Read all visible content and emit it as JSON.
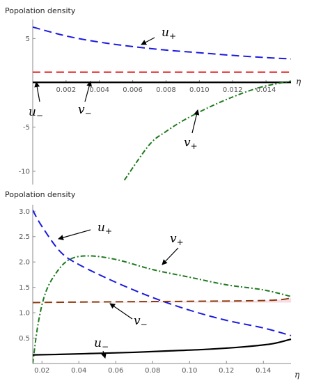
{
  "chart_data": [
    {
      "type": "line",
      "ylabel": "Popolation density",
      "xlabel": "η",
      "xlim": [
        0.0,
        0.0155
      ],
      "ylim": [
        -11.5,
        7.0
      ],
      "xticks": [
        0.002,
        0.004,
        0.006,
        0.008,
        0.01,
        0.012,
        0.014
      ],
      "xtick_labels": [
        "0.002",
        "0.004",
        "0.006",
        "0.008",
        "0.010",
        "0.012",
        "0.014"
      ],
      "yticks": [
        5,
        -5,
        -10
      ],
      "ytick_labels": [
        "5",
        "-5",
        "-10"
      ],
      "series": [
        {
          "name": "u+",
          "color": "#1a1adf",
          "style": "dashed",
          "x": [
            0.0,
            0.002,
            0.004,
            0.006,
            0.008,
            0.01,
            0.012,
            0.014,
            0.0155
          ],
          "y": [
            6.3,
            5.3,
            4.6,
            4.1,
            3.7,
            3.4,
            3.1,
            2.85,
            2.7
          ]
        },
        {
          "name": "v−",
          "color": "#e01a1a",
          "style": "dashed",
          "x": [
            0.0,
            0.0155
          ],
          "y": [
            1.2,
            1.2
          ]
        },
        {
          "name": "u−",
          "color": "#000000",
          "style": "solid",
          "x": [
            0.0,
            0.0155
          ],
          "y": [
            0.05,
            0.05
          ]
        },
        {
          "name": "v+",
          "color": "#1e7a1e",
          "style": "dashdot",
          "x": [
            0.0055,
            0.007,
            0.008,
            0.009,
            0.01,
            0.011,
            0.012,
            0.013,
            0.014,
            0.0155
          ],
          "y": [
            -11.0,
            -7.0,
            -5.5,
            -4.3,
            -3.3,
            -2.4,
            -1.6,
            -0.9,
            -0.35,
            0.2
          ]
        }
      ],
      "annotations": [
        {
          "label": "u+",
          "text": "u",
          "sub": "+"
        },
        {
          "label": "u−",
          "text": "u",
          "sub": "−"
        },
        {
          "label": "v−",
          "text": "v",
          "sub": "−"
        },
        {
          "label": "v+",
          "text": "v",
          "sub": "+"
        }
      ]
    },
    {
      "type": "line",
      "ylabel": "Popolation density",
      "xlabel": "η",
      "xlim": [
        0.015,
        0.155
      ],
      "ylim": [
        0.0,
        3.1
      ],
      "xticks": [
        0.02,
        0.04,
        0.06,
        0.08,
        0.1,
        0.12,
        0.14
      ],
      "xtick_labels": [
        "0.02",
        "0.04",
        "0.06",
        "0.08",
        "0.10",
        "0.12",
        "0.14"
      ],
      "yticks": [
        0.5,
        1.0,
        1.5,
        2.0,
        2.5,
        3.0
      ],
      "ytick_labels": [
        "0.5",
        "1.0",
        "1.5",
        "2.0",
        "2.5",
        "3.0"
      ],
      "series": [
        {
          "name": "u+",
          "color": "#1a1adf",
          "style": "dashed",
          "x": [
            0.015,
            0.02,
            0.03,
            0.04,
            0.06,
            0.08,
            0.1,
            0.12,
            0.14,
            0.155
          ],
          "y": [
            3.02,
            2.7,
            2.2,
            1.95,
            1.6,
            1.3,
            1.05,
            0.85,
            0.7,
            0.55
          ]
        },
        {
          "name": "v+",
          "color": "#1e7a1e",
          "style": "dashdot",
          "x": [
            0.015,
            0.018,
            0.022,
            0.028,
            0.035,
            0.045,
            0.06,
            0.08,
            0.1,
            0.12,
            0.14,
            0.155
          ],
          "y": [
            0.0,
            0.8,
            1.4,
            1.8,
            2.05,
            2.12,
            2.05,
            1.85,
            1.7,
            1.55,
            1.45,
            1.32
          ]
        },
        {
          "name": "v−",
          "color": "#8b3a0f",
          "style": "dashed",
          "x": [
            0.015,
            0.04,
            0.08,
            0.12,
            0.14,
            0.15,
            0.155
          ],
          "y": [
            1.2,
            1.21,
            1.22,
            1.23,
            1.24,
            1.26,
            1.29
          ]
        },
        {
          "name": "u−",
          "color": "#000000",
          "style": "solid",
          "x": [
            0.015,
            0.03,
            0.05,
            0.07,
            0.09,
            0.11,
            0.13,
            0.145,
            0.155
          ],
          "y": [
            0.17,
            0.18,
            0.2,
            0.22,
            0.25,
            0.28,
            0.33,
            0.39,
            0.48
          ]
        }
      ],
      "annotations": [
        {
          "label": "u+",
          "text": "u",
          "sub": "+"
        },
        {
          "label": "v+",
          "text": "v",
          "sub": "+"
        },
        {
          "label": "v−",
          "text": "v",
          "sub": "−"
        },
        {
          "label": "u−",
          "text": "u",
          "sub": "−"
        }
      ]
    }
  ]
}
